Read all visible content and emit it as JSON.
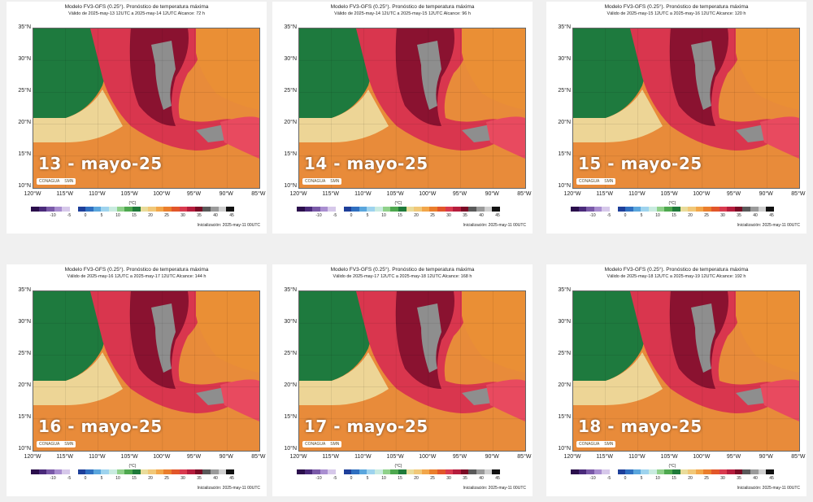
{
  "colorbar": {
    "unit": "(°C)",
    "ticks": [
      "-10",
      "-5",
      "0",
      "5",
      "10",
      "15",
      "20",
      "25",
      "30",
      "35",
      "40",
      "45"
    ],
    "colors": [
      "#2b0f4c",
      "#4a2a7a",
      "#7a5aa8",
      "#a98ed0",
      "#d6c8ea",
      "#ffffff",
      "#1e3f9a",
      "#2f6fc0",
      "#5aa6dd",
      "#9ed3ee",
      "#c9ebe0",
      "#8fd18a",
      "#4ea84f",
      "#1f7a3a",
      "#e9dc9b",
      "#f1c878",
      "#f2a64a",
      "#ea7e2c",
      "#e2562a",
      "#d93a4e",
      "#b51d3d",
      "#7a0b25",
      "#5a5a5a",
      "#9a9a9a",
      "#d0d0d0",
      "#111111"
    ]
  },
  "lat_labels": [
    "35°N",
    "30°N",
    "25°N",
    "20°N",
    "15°N",
    "10°N"
  ],
  "lon_labels": [
    "120°W",
    "115°W",
    "110°W",
    "105°W",
    "100°W",
    "95°W",
    "90°W",
    "85°W"
  ],
  "logos": {
    "conagua": "CONAGUA",
    "smn": "SMN"
  },
  "colors": {
    "ocean_cool": "#1e7a3e",
    "warm": "#e88b3a",
    "hot": "#d9364e",
    "very_hot": "#8a1230",
    "extreme": "#8e8e8e",
    "mild": "#edd596"
  },
  "panels": [
    {
      "title": "Modelo FV3-GFS (0.25°). Pronóstico de temperatura máxima",
      "valid": "Válido de 2025-may-13 12UTC a 2025-may-14 12UTC    Alcance: 72 h",
      "date": "13 - mayo-25",
      "init": "Inicialización: 2025-may-11 00UTC"
    },
    {
      "title": "Modelo FV3-GFS (0.25°). Pronóstico de temperatura máxima",
      "valid": "Válido de 2025-may-14 12UTC a 2025-may-15 12UTC    Alcance: 96 h",
      "date": "14 - mayo-25",
      "init": "Inicialización: 2025-may-11 00UTC"
    },
    {
      "title": "Modelo FV3-GFS (0.25°). Pronóstico de temperatura máxima",
      "valid": "Válido de 2025-may-15 12UTC a 2025-may-16 12UTC    Alcance: 120 h",
      "date": "15 - mayo-25",
      "init": "Inicialización: 2025-may-11 00UTC"
    },
    {
      "title": "Modelo FV3-GFS (0.25°). Pronóstico de temperatura máxima",
      "valid": "Válido de 2025-may-16 12UTC a 2025-may-17 12UTC    Alcance: 144 h",
      "date": "16 - mayo-25",
      "init": "Inicialización: 2025-may-11 00UTC"
    },
    {
      "title": "Modelo FV3-GFS (0.25°). Pronóstico de temperatura máxima",
      "valid": "Válido de 2025-may-17 12UTC a 2025-may-18 12UTC    Alcance: 168 h",
      "date": "17 - mayo-25",
      "init": "Inicialización: 2025-may-11 00UTC"
    },
    {
      "title": "Modelo FV3-GFS (0.25°). Pronóstico de temperatura máxima",
      "valid": "Válido de 2025-may-18 12UTC a 2025-may-19 12UTC    Alcance: 192 h",
      "date": "18 - mayo-25",
      "init": "Inicialización: 2025-may-11 00UTC"
    }
  ]
}
